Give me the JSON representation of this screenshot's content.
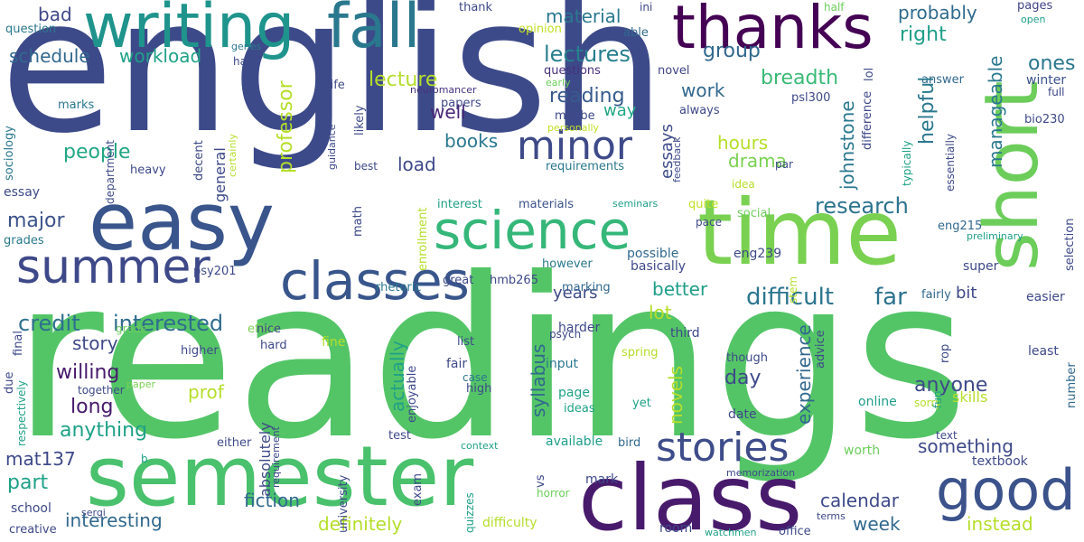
{
  "words": [
    {
      "id": "english",
      "text": "english",
      "color": "#3d4a89"
    },
    {
      "id": "readings",
      "text": "readings",
      "color": "#54c567"
    },
    {
      "id": "time",
      "text": "time",
      "color": "#7ad151"
    },
    {
      "id": "semester",
      "text": "semester",
      "color": "#4ac16d"
    },
    {
      "id": "class",
      "text": "class",
      "color": "#481a6c"
    },
    {
      "id": "easy",
      "text": "easy",
      "color": "#39558c"
    },
    {
      "id": "writing",
      "text": "writing",
      "color": "#1f948c"
    },
    {
      "id": "fall",
      "text": "fall",
      "color": "#2a788e"
    },
    {
      "id": "thanks",
      "text": "thanks",
      "color": "#440154"
    },
    {
      "id": "short",
      "text": "short",
      "color": "#6ccd5a"
    },
    {
      "id": "good",
      "text": "good",
      "color": "#3b528b"
    },
    {
      "id": "science",
      "text": "science",
      "color": "#35b779"
    },
    {
      "id": "classes",
      "text": "classes",
      "color": "#39568c"
    },
    {
      "id": "summer",
      "text": "summer",
      "color": "#3e4989"
    },
    {
      "id": "minor",
      "text": "minor",
      "color": "#3e4a89"
    },
    {
      "id": "stories",
      "text": "stories",
      "color": "#3e4c8a"
    },
    {
      "id": "credit",
      "text": "credit",
      "color": "#2d708e"
    },
    {
      "id": "interested",
      "text": "interested",
      "color": "#2f6c8e"
    },
    {
      "id": "difficult",
      "text": "difficult",
      "color": "#2b758e"
    },
    {
      "id": "far",
      "text": "far",
      "color": "#2c728e"
    },
    {
      "id": "research",
      "text": "research",
      "color": "#2c738e"
    },
    {
      "id": "bad",
      "text": "bad",
      "color": "#3f4788"
    },
    {
      "id": "schedule",
      "text": "schedule",
      "color": "#31688e"
    },
    {
      "id": "workload",
      "text": "workload",
      "color": "#1fa187"
    },
    {
      "id": "lecture",
      "text": "lecture",
      "color": "#b5de2b"
    },
    {
      "id": "material",
      "text": "material",
      "color": "#2a788e"
    },
    {
      "id": "lectures",
      "text": "lectures",
      "color": "#277f8e"
    },
    {
      "id": "group",
      "text": "group",
      "color": "#31688e"
    },
    {
      "id": "breadth",
      "text": "breadth",
      "color": "#3aba76"
    },
    {
      "id": "probably",
      "text": "probably",
      "color": "#2f6b8e"
    },
    {
      "id": "right",
      "text": "right",
      "color": "#1f9e89"
    },
    {
      "id": "ones",
      "text": "ones",
      "color": "#2a768e"
    },
    {
      "id": "question",
      "text": "question",
      "color": "#2a788e"
    },
    {
      "id": "thank",
      "text": "thank",
      "color": "#3e4989"
    },
    {
      "id": "opinion",
      "text": "opinion",
      "color": "#c2df23"
    },
    {
      "id": "ini",
      "text": "ini",
      "color": "#3f4889"
    },
    {
      "id": "able",
      "text": "able",
      "color": "#31688e"
    },
    {
      "id": "half",
      "text": "half",
      "color": "#6ccd5a"
    },
    {
      "id": "pages",
      "text": "pages",
      "color": "#414487"
    },
    {
      "id": "open",
      "text": "open",
      "color": "#1f9e89"
    },
    {
      "id": "genes",
      "text": "genes",
      "color": "#2a788e"
    },
    {
      "id": "hand",
      "text": "hand",
      "color": "#3e4989"
    },
    {
      "id": "life",
      "text": "life",
      "color": "#3f4889"
    },
    {
      "id": "answer",
      "text": "answer",
      "color": "#31688e"
    },
    {
      "id": "winter",
      "text": "winter",
      "color": "#3b528b"
    },
    {
      "id": "full",
      "text": "full",
      "color": "#3e4989"
    },
    {
      "id": "novel",
      "text": "novel",
      "color": "#414487"
    },
    {
      "id": "questions",
      "text": "questions",
      "color": "#472f7d"
    },
    {
      "id": "early",
      "text": "early",
      "color": "#6ccd5a"
    },
    {
      "id": "neuromancer",
      "text": "neuromancer",
      "color": "#46337f"
    },
    {
      "id": "papers",
      "text": "papers",
      "color": "#3e4989"
    },
    {
      "id": "reading",
      "text": "reading",
      "color": "#375a8c"
    },
    {
      "id": "work",
      "text": "work",
      "color": "#31688e"
    },
    {
      "id": "well",
      "text": "well",
      "color": "#482878"
    },
    {
      "id": "way",
      "text": "way",
      "color": "#22a785"
    },
    {
      "id": "maybe",
      "text": "maybe",
      "color": "#3e4989"
    },
    {
      "id": "personally",
      "text": "personally",
      "color": "#c2df23"
    },
    {
      "id": "essays",
      "text": "essays",
      "color": "#3e4c8a"
    },
    {
      "id": "psl300",
      "text": "psl300",
      "color": "#3e4989"
    },
    {
      "id": "always",
      "text": "always",
      "color": "#3e4989"
    },
    {
      "id": "bio230",
      "text": "bio230",
      "color": "#3e4989"
    },
    {
      "id": "people",
      "text": "people",
      "color": "#22a785"
    },
    {
      "id": "books",
      "text": "books",
      "color": "#2a788e"
    },
    {
      "id": "load",
      "text": "load",
      "color": "#3e4989"
    },
    {
      "id": "hours",
      "text": "hours",
      "color": "#b5de2b"
    },
    {
      "id": "drama",
      "text": "drama",
      "color": "#7ad151"
    },
    {
      "id": "requirements",
      "text": "requirements",
      "color": "#2a788e"
    },
    {
      "id": "marks",
      "text": "marks",
      "color": "#2a788e"
    },
    {
      "id": "heavy",
      "text": "heavy",
      "color": "#3e4989"
    },
    {
      "id": "best",
      "text": "best",
      "color": "#3e4989"
    },
    {
      "id": "par",
      "text": "par",
      "color": "#3e4989"
    },
    {
      "id": "idea",
      "text": "idea",
      "color": "#b5de2b"
    },
    {
      "id": "essay",
      "text": "essay",
      "color": "#3e4989"
    },
    {
      "id": "grades",
      "text": "grades",
      "color": "#2a788e"
    },
    {
      "id": "major",
      "text": "major",
      "color": "#3b528b"
    },
    {
      "id": "interest",
      "text": "interest",
      "color": "#1fa187"
    },
    {
      "id": "materials",
      "text": "materials",
      "color": "#3b528b"
    },
    {
      "id": "seminars",
      "text": "seminars",
      "color": "#1f9e89"
    },
    {
      "id": "quite",
      "text": "quite",
      "color": "#c2df23"
    },
    {
      "id": "social",
      "text": "social",
      "color": "#6ccd5a"
    },
    {
      "id": "eng215",
      "text": "eng215",
      "color": "#31688e"
    },
    {
      "id": "preliminary",
      "text": "preliminary",
      "color": "#1f9e89"
    },
    {
      "id": "selection",
      "text": "selection",
      "color": "#3e4989"
    },
    {
      "id": "pace",
      "text": "pace",
      "color": "#3e4989"
    },
    {
      "id": "possible",
      "text": "possible",
      "color": "#31688e"
    },
    {
      "id": "basically",
      "text": "basically",
      "color": "#3e4989"
    },
    {
      "id": "eng239",
      "text": "eng239",
      "color": "#3e4989"
    },
    {
      "id": "super",
      "text": "super",
      "color": "#3e4989"
    },
    {
      "id": "bit",
      "text": "bit",
      "color": "#3e4989"
    },
    {
      "id": "fairly",
      "text": "fairly",
      "color": "#31688e"
    },
    {
      "id": "easier",
      "text": "easier",
      "color": "#3e4989"
    },
    {
      "id": "great",
      "text": "great",
      "color": "#3e4989"
    },
    {
      "id": "hmb265",
      "text": "hmb265",
      "color": "#3e4989"
    },
    {
      "id": "however",
      "text": "however",
      "color": "#2a788e"
    },
    {
      "id": "psy201",
      "text": "psy201",
      "color": "#3e4989"
    },
    {
      "id": "rhetoric",
      "text": "rhetoric",
      "color": "#2a788e"
    },
    {
      "id": "years",
      "text": "years",
      "color": "#3e4989"
    },
    {
      "id": "better",
      "text": "better",
      "color": "#1f9e89"
    },
    {
      "id": "marking",
      "text": "marking",
      "color": "#31688e"
    },
    {
      "id": "effort",
      "text": "effort",
      "color": "#7ad151"
    },
    {
      "id": "lot",
      "text": "lot",
      "color": "#b5de2b"
    },
    {
      "id": "harder",
      "text": "harder",
      "color": "#3e4989"
    },
    {
      "id": "story",
      "text": "story",
      "color": "#3e4989"
    },
    {
      "id": "third",
      "text": "third",
      "color": "#3e4989"
    },
    {
      "id": "psych",
      "text": "psych",
      "color": "#3e4989"
    },
    {
      "id": "input",
      "text": "input",
      "color": "#2a788e"
    },
    {
      "id": "nice",
      "text": "nice",
      "color": "#3e4989"
    },
    {
      "id": "grade",
      "text": "grade",
      "color": "#6ccd5a"
    },
    {
      "id": "higher",
      "text": "higher",
      "color": "#3e4989"
    },
    {
      "id": "hard",
      "text": "hard",
      "color": "#3e4989"
    },
    {
      "id": "fine",
      "text": "fine",
      "color": "#b5de2b"
    },
    {
      "id": "list",
      "text": "list",
      "color": "#3e4989"
    },
    {
      "id": "fair",
      "text": "fair",
      "color": "#3e4989"
    },
    {
      "id": "case",
      "text": "case",
      "color": "#2a788e"
    },
    {
      "id": "high",
      "text": "high",
      "color": "#3e4989"
    },
    {
      "id": "spring",
      "text": "spring",
      "color": "#b5de2b"
    },
    {
      "id": "paper",
      "text": "paper",
      "color": "#7ad151"
    },
    {
      "id": "though",
      "text": "though",
      "color": "#3e4989"
    },
    {
      "id": "day",
      "text": "day",
      "color": "#3e4989"
    },
    {
      "id": "least",
      "text": "least",
      "color": "#3e4989"
    },
    {
      "id": "willing",
      "text": "willing",
      "color": "#481a6c"
    },
    {
      "id": "prof",
      "text": "prof",
      "color": "#b5de2b"
    },
    {
      "id": "long",
      "text": "long",
      "color": "#481a6c"
    },
    {
      "id": "anything",
      "text": "anything",
      "color": "#1fa187"
    },
    {
      "id": "anyone",
      "text": "anyone",
      "color": "#3e4989"
    },
    {
      "id": "online",
      "text": "online",
      "color": "#1f9e89"
    },
    {
      "id": "sorry",
      "text": "sorry",
      "color": "#b5de2b"
    },
    {
      "id": "skills",
      "text": "skills",
      "color": "#b5de2b"
    },
    {
      "id": "page",
      "text": "page",
      "color": "#1fa187"
    },
    {
      "id": "ideas",
      "text": "ideas",
      "color": "#1fa187"
    },
    {
      "id": "yet",
      "text": "yet",
      "color": "#1fa187"
    },
    {
      "id": "date",
      "text": "date",
      "color": "#3e4989"
    },
    {
      "id": "test",
      "text": "test",
      "color": "#3e4989"
    },
    {
      "id": "available",
      "text": "available",
      "color": "#1f9e89"
    },
    {
      "id": "bird",
      "text": "bird",
      "color": "#31688e"
    },
    {
      "id": "something",
      "text": "something",
      "color": "#3e4989"
    },
    {
      "id": "text",
      "text": "text",
      "color": "#3e4989"
    },
    {
      "id": "mat137",
      "text": "mat137",
      "color": "#3e4989"
    },
    {
      "id": "part",
      "text": "part",
      "color": "#1fa187"
    },
    {
      "id": "context",
      "text": "context",
      "color": "#1fa187"
    },
    {
      "id": "worth",
      "text": "worth",
      "color": "#6ccd5a"
    },
    {
      "id": "textbook",
      "text": "textbook",
      "color": "#3e4989"
    },
    {
      "id": "mark",
      "text": "mark",
      "color": "#3e4989"
    },
    {
      "id": "memorization",
      "text": "memorization",
      "color": "#3e4989"
    },
    {
      "id": "calendar",
      "text": "calendar",
      "color": "#3e4989"
    },
    {
      "id": "school",
      "text": "school",
      "color": "#3e4989"
    },
    {
      "id": "sergi",
      "text": "sergi",
      "color": "#3e4989"
    },
    {
      "id": "b",
      "text": "b",
      "color": "#1fa187"
    },
    {
      "id": "interesting",
      "text": "interesting",
      "color": "#31688e"
    },
    {
      "id": "fiction",
      "text": "fiction",
      "color": "#31688e"
    },
    {
      "id": "definitely",
      "text": "definitely",
      "color": "#b5de2b"
    },
    {
      "id": "horror",
      "text": "horror",
      "color": "#6ccd5a"
    },
    {
      "id": "week",
      "text": "week",
      "color": "#31688e"
    },
    {
      "id": "instead",
      "text": "instead",
      "color": "#b5de2b"
    },
    {
      "id": "creative",
      "text": "creative",
      "color": "#3e4989"
    },
    {
      "id": "difficulty",
      "text": "difficulty",
      "color": "#b5de2b"
    },
    {
      "id": "room",
      "text": "room",
      "color": "#3e4989"
    },
    {
      "id": "watchmen",
      "text": "watchmen",
      "color": "#1fa187"
    },
    {
      "id": "terms",
      "text": "terms",
      "color": "#3e4989"
    },
    {
      "id": "office",
      "text": "office",
      "color": "#3e4989"
    },
    {
      "id": "either",
      "text": "either",
      "color": "#3e4989"
    },
    {
      "id": "sociology",
      "text": "sociology",
      "color": "#2a788e"
    },
    {
      "id": "department",
      "text": "department",
      "color": "#3e4989"
    },
    {
      "id": "professor",
      "text": "professor",
      "color": "#b5de2b"
    },
    {
      "id": "general",
      "text": "general",
      "color": "#3e4989"
    },
    {
      "id": "decent",
      "text": "decent",
      "color": "#3e4989"
    },
    {
      "id": "certainly",
      "text": "certainly",
      "color": "#b5de2b"
    },
    {
      "id": "guidance",
      "text": "guidance",
      "color": "#3e4989"
    },
    {
      "id": "likely",
      "text": "likely",
      "color": "#3e4989"
    },
    {
      "id": "johnstone",
      "text": "johnstone",
      "color": "#2a788e"
    },
    {
      "id": "helpful",
      "text": "helpful",
      "color": "#2a788e"
    },
    {
      "id": "manageable",
      "text": "manageable",
      "color": "#2a788e"
    },
    {
      "id": "difference",
      "text": "difference",
      "color": "#3e4989"
    },
    {
      "id": "lol",
      "text": "lol",
      "color": "#3e4989"
    },
    {
      "id": "feedback",
      "text": "feedback",
      "color": "#3e4989"
    },
    {
      "id": "typically",
      "text": "typically",
      "color": "#1fa187"
    },
    {
      "id": "essentially",
      "text": "essentially",
      "color": "#3e4989"
    },
    {
      "id": "math",
      "text": "math",
      "color": "#3e4989"
    },
    {
      "id": "enrollment",
      "text": "enrollment",
      "color": "#b5de2b"
    },
    {
      "id": "stem",
      "text": "stem",
      "color": "#b5de2b"
    },
    {
      "id": "syllabus",
      "text": "syllabus",
      "color": "#31688e"
    },
    {
      "id": "actually",
      "text": "actually",
      "color": "#1fa187"
    },
    {
      "id": "novels",
      "text": "novels",
      "color": "#b5de2b"
    },
    {
      "id": "experience",
      "text": "experience",
      "color": "#31688e"
    },
    {
      "id": "absolutely",
      "text": "absolutely",
      "color": "#3e4989"
    },
    {
      "id": "enjoyable",
      "text": "enjoyable",
      "color": "#3e4989"
    },
    {
      "id": "requirement",
      "text": "requirement",
      "color": "#3e4989"
    },
    {
      "id": "university",
      "text": "university",
      "color": "#3e4989"
    },
    {
      "id": "exam",
      "text": "exam",
      "color": "#3e4989"
    },
    {
      "id": "quizzes",
      "text": "quizzes",
      "color": "#1fa187"
    },
    {
      "id": "vs",
      "text": "vs",
      "color": "#3e4989"
    },
    {
      "id": "final",
      "text": "final",
      "color": "#3e4989"
    },
    {
      "id": "due",
      "text": "due",
      "color": "#3e4989"
    },
    {
      "id": "respectively",
      "text": "respectively",
      "color": "#1fa187"
    },
    {
      "id": "together",
      "text": "together",
      "color": "#3e4989"
    },
    {
      "id": "advice",
      "text": "advice",
      "color": "#3e4989"
    },
    {
      "id": "rop",
      "text": "rop",
      "color": "#3e4989"
    },
    {
      "id": "fun",
      "text": "fun",
      "color": "#1fa187"
    },
    {
      "id": "number",
      "text": "number",
      "color": "#31688e"
    }
  ]
}
